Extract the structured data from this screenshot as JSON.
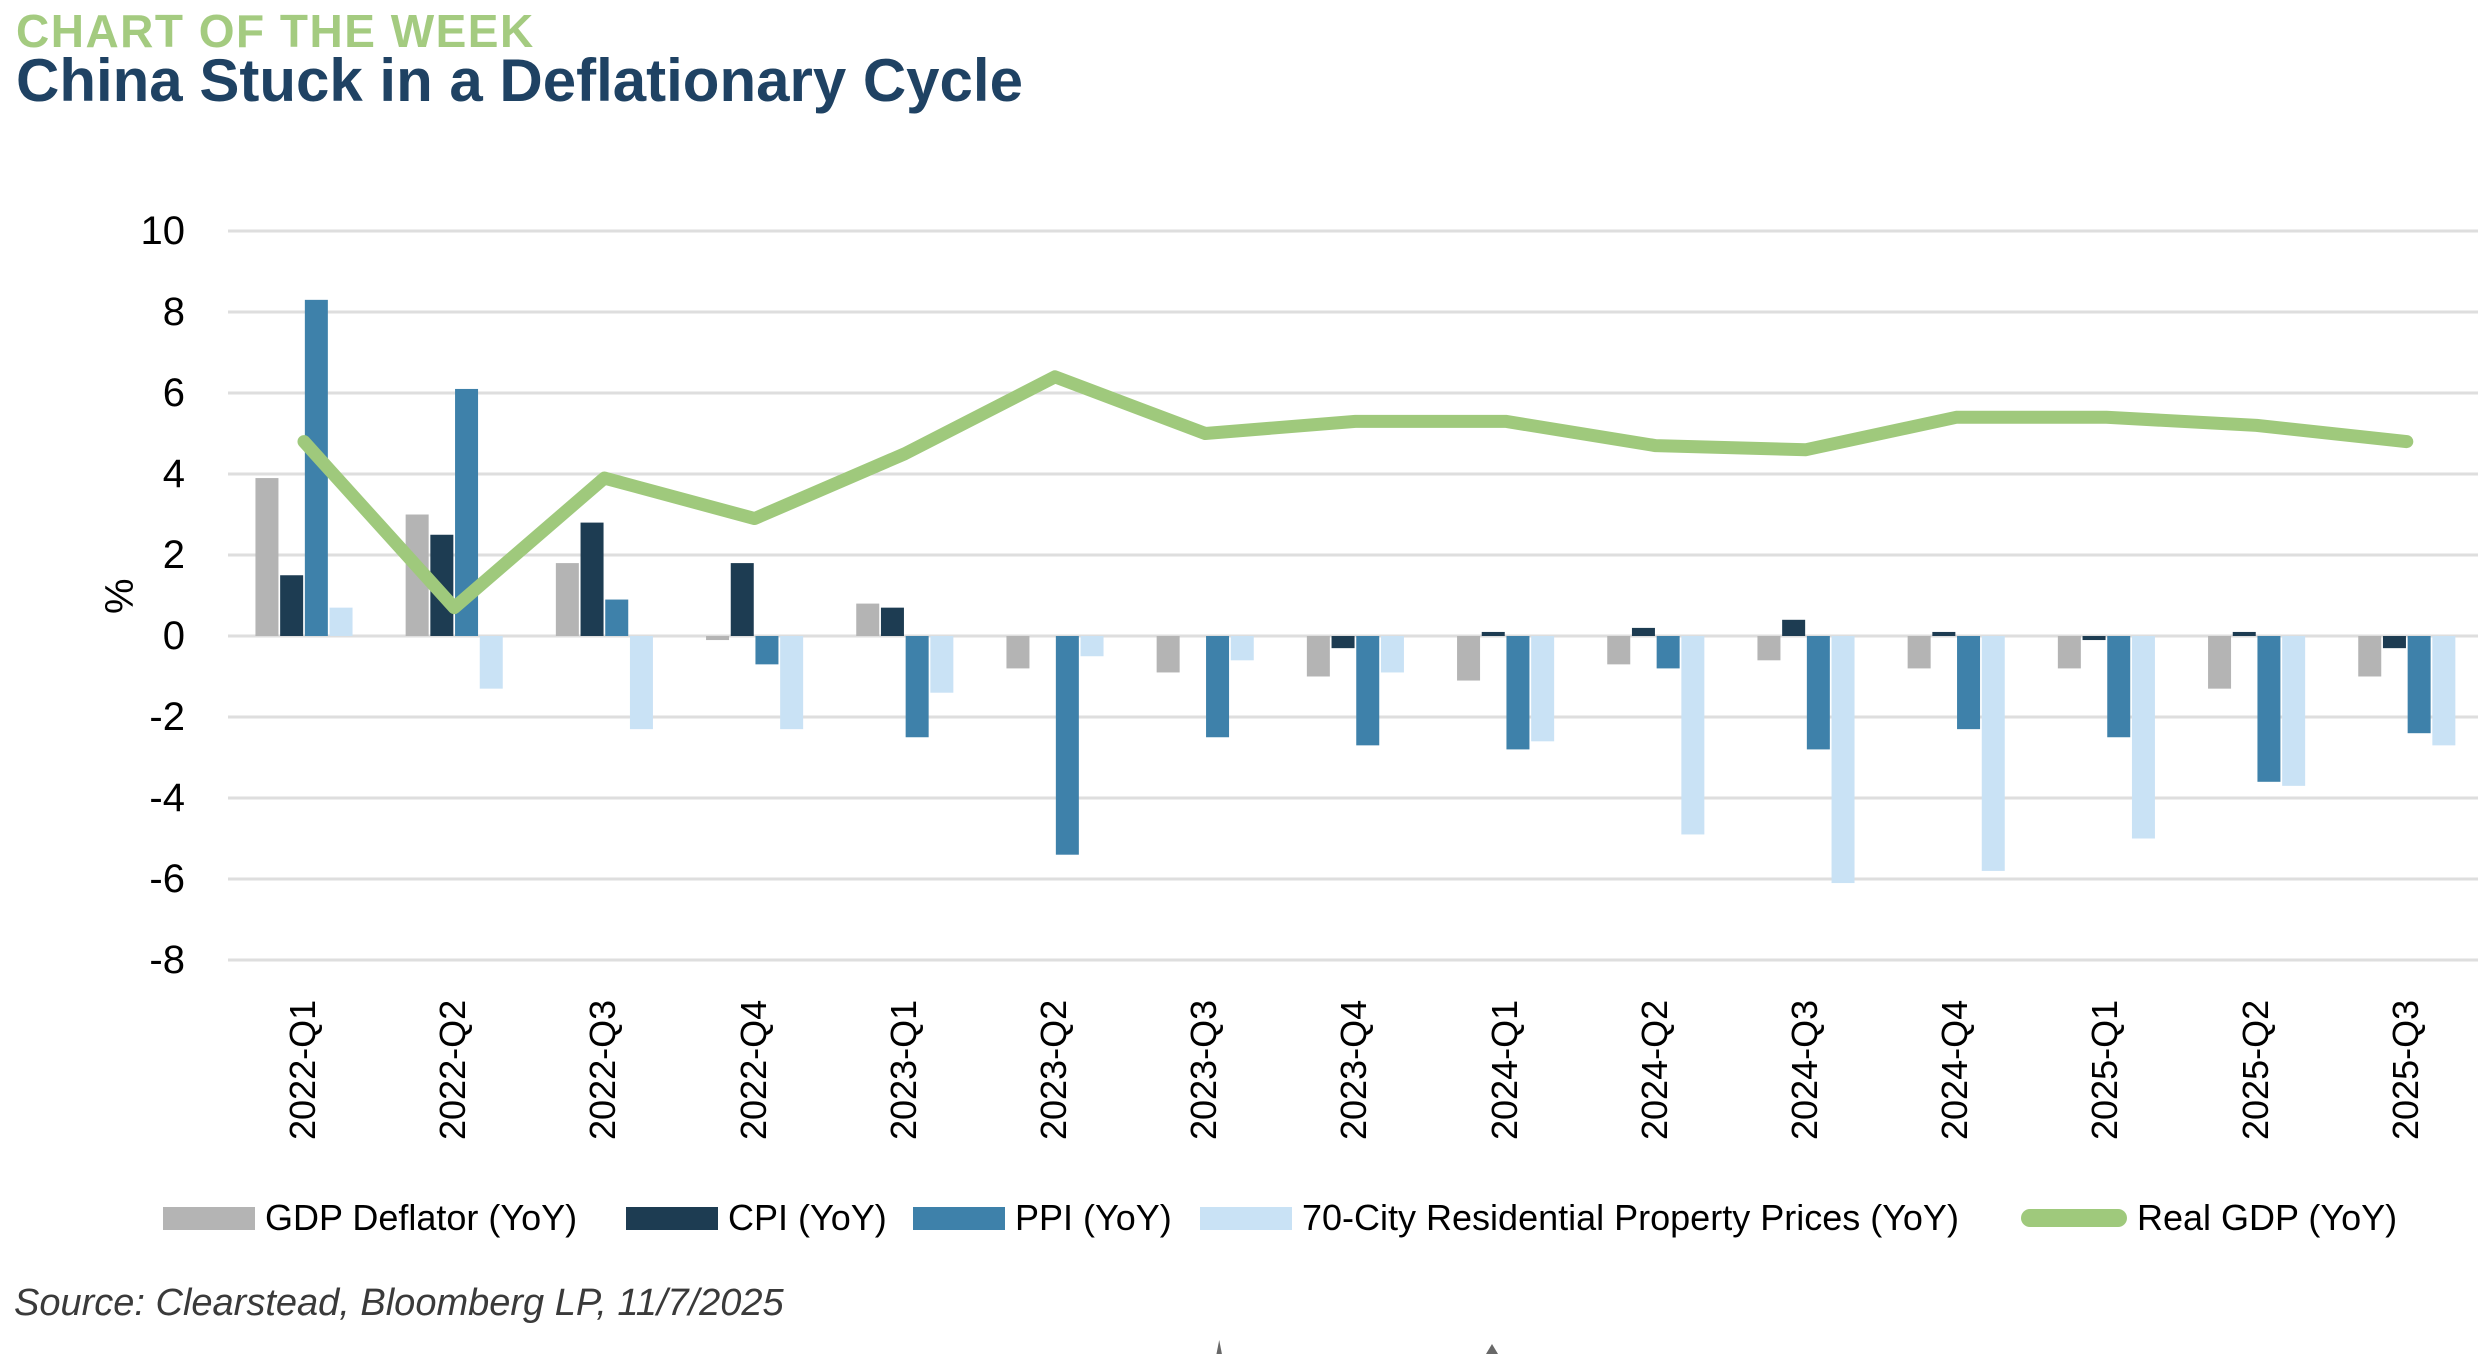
{
  "header": {
    "eyebrow": "CHART OF THE WEEK",
    "title": "China Stuck in a Deflationary Cycle"
  },
  "source_note": "Source: Clearstead, Bloomberg LP, 11/7/2025",
  "colors": {
    "eyebrow_green": "#a4cb80",
    "title_navy": "#1f4263",
    "gridline": "#dedede",
    "axis_text": "#000000",
    "source_text": "#3a3a3a"
  },
  "chart_data": {
    "type": "bar",
    "title": "China Stuck in a Deflationary Cycle",
    "xlabel": "",
    "ylabel": "%",
    "ylim": [
      -8,
      10
    ],
    "yticks": [
      10,
      8,
      6,
      4,
      2,
      0,
      -2,
      -4,
      -6,
      -8
    ],
    "grid": true,
    "legend_position": "bottom",
    "tick_label_rotation": "vertical",
    "categories": [
      "2022-Q1",
      "2022-Q2",
      "2022-Q3",
      "2022-Q4",
      "2023-Q1",
      "2023-Q2",
      "2023-Q3",
      "2023-Q4",
      "2024-Q1",
      "2024-Q2",
      "2024-Q3",
      "2024-Q4",
      "2025-Q1",
      "2025-Q2",
      "2025-Q3"
    ],
    "series": [
      {
        "name": "GDP Deflator (YoY)",
        "kind": "bar",
        "color": "#b4b4b4",
        "values": [
          3.9,
          3.0,
          1.8,
          -0.1,
          0.8,
          -0.8,
          -0.9,
          -1.0,
          -1.1,
          -0.7,
          -0.6,
          -0.8,
          -0.8,
          -1.3,
          -1.0
        ]
      },
      {
        "name": "CPI (YoY)",
        "kind": "bar",
        "color": "#1d3c52",
        "values": [
          1.5,
          2.5,
          2.8,
          1.8,
          0.7,
          0.0,
          0.0,
          -0.3,
          0.1,
          0.2,
          0.4,
          0.1,
          -0.1,
          0.1,
          -0.3
        ]
      },
      {
        "name": "PPI (YoY)",
        "kind": "bar",
        "color": "#3e81aa",
        "values": [
          8.3,
          6.1,
          0.9,
          -0.7,
          -2.5,
          -5.4,
          -2.5,
          -2.7,
          -2.8,
          -0.8,
          -2.8,
          -2.3,
          -2.5,
          -3.6,
          -2.4
        ]
      },
      {
        "name": "70-City Residential Property Prices (YoY)",
        "kind": "bar",
        "color": "#c9e2f5",
        "values": [
          0.7,
          -1.3,
          -2.3,
          -2.3,
          -1.4,
          -0.5,
          -0.6,
          -0.9,
          -2.6,
          -4.9,
          -6.1,
          -5.8,
          -5.0,
          -3.7,
          -2.7
        ]
      },
      {
        "name": "Real GDP (YoY)",
        "kind": "line",
        "color": "#9fc97c",
        "values": [
          4.8,
          0.7,
          3.9,
          2.9,
          4.5,
          6.4,
          5.0,
          5.3,
          5.3,
          4.7,
          4.6,
          5.4,
          5.4,
          5.2,
          4.8
        ]
      }
    ]
  }
}
